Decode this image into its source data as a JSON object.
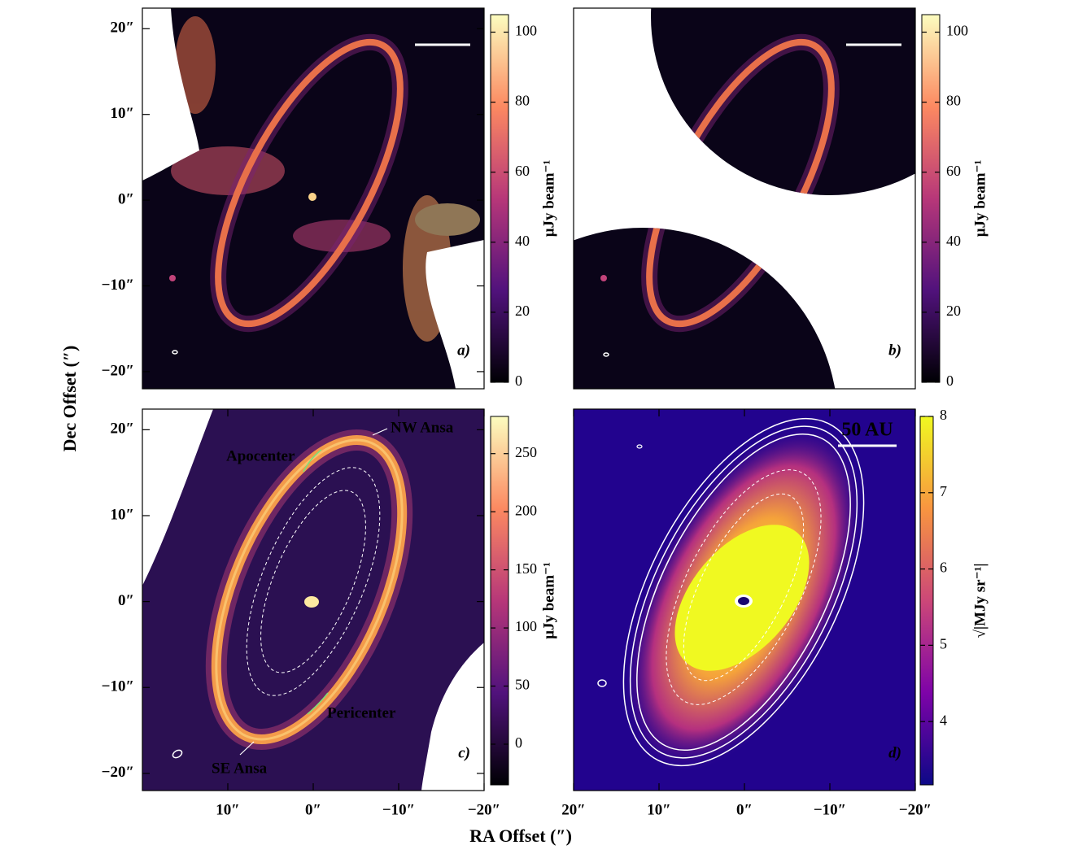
{
  "xlabel": "RA Offset (″)",
  "ylabel": "Dec Offset (″)",
  "chart_data": [
    {
      "type": "image",
      "panel_label": "a)",
      "colormap": "magma",
      "xlim": [
        20,
        -20
      ],
      "ylim": [
        -22,
        22.4
      ],
      "yticks": [
        {
          "value": 20,
          "label": "20″"
        },
        {
          "value": 10,
          "label": "10″"
        },
        {
          "value": 0,
          "label": "0″"
        },
        {
          "value": -10,
          "label": "−10″"
        },
        {
          "value": -20,
          "label": "−20″"
        }
      ],
      "colorbar": {
        "label": "μJy beam⁻¹",
        "lim": [
          0,
          105
        ],
        "ticks": [
          0,
          20,
          40,
          60,
          80,
          100
        ]
      }
    },
    {
      "type": "image",
      "panel_label": "b)",
      "colormap": "magma",
      "xlim": [
        20,
        -20
      ],
      "ylim": [
        -22,
        22.4
      ],
      "colorbar": {
        "label": "μJy beam⁻¹",
        "lim": [
          0,
          105
        ],
        "ticks": [
          0,
          20,
          40,
          60,
          80,
          100
        ]
      }
    },
    {
      "type": "image",
      "panel_label": "c)",
      "colormap": "magma",
      "xlim": [
        20,
        -20
      ],
      "ylim": [
        -22,
        22.4
      ],
      "yticks": [
        {
          "value": 20,
          "label": "20″"
        },
        {
          "value": 10,
          "label": "10″"
        },
        {
          "value": 0,
          "label": "0″"
        },
        {
          "value": -10,
          "label": "−10″"
        },
        {
          "value": -20,
          "label": "−20″"
        }
      ],
      "xticks": [
        {
          "value": 10,
          "label": "10″"
        },
        {
          "value": 0,
          "label": "0″"
        },
        {
          "value": -10,
          "label": "−10″"
        },
        {
          "value": -20,
          "label": "−20″"
        }
      ],
      "annotations": [
        "NW Ansa",
        "Apocenter",
        "Pericenter",
        "SE Ansa"
      ],
      "colorbar": {
        "label": "μJy beam⁻¹",
        "lim": [
          -35,
          282
        ],
        "ticks": [
          0,
          50,
          100,
          150,
          200,
          250
        ]
      }
    },
    {
      "type": "image",
      "panel_label": "d)",
      "colormap": "plasma",
      "xlim": [
        20,
        -20
      ],
      "ylim": [
        -22,
        22.4
      ],
      "xticks": [
        {
          "value": 20,
          "label": "20″"
        },
        {
          "value": 10,
          "label": "10″"
        },
        {
          "value": 0,
          "label": "0″"
        },
        {
          "value": -10,
          "label": "−10″"
        },
        {
          "value": -20,
          "label": "−20″"
        }
      ],
      "annotations": [
        "50 AU"
      ],
      "colorbar": {
        "label": "√|MJy sr⁻¹|",
        "lim": [
          3.17,
          8.0
        ],
        "ticks": [
          4,
          5,
          6,
          7,
          8
        ]
      }
    }
  ]
}
